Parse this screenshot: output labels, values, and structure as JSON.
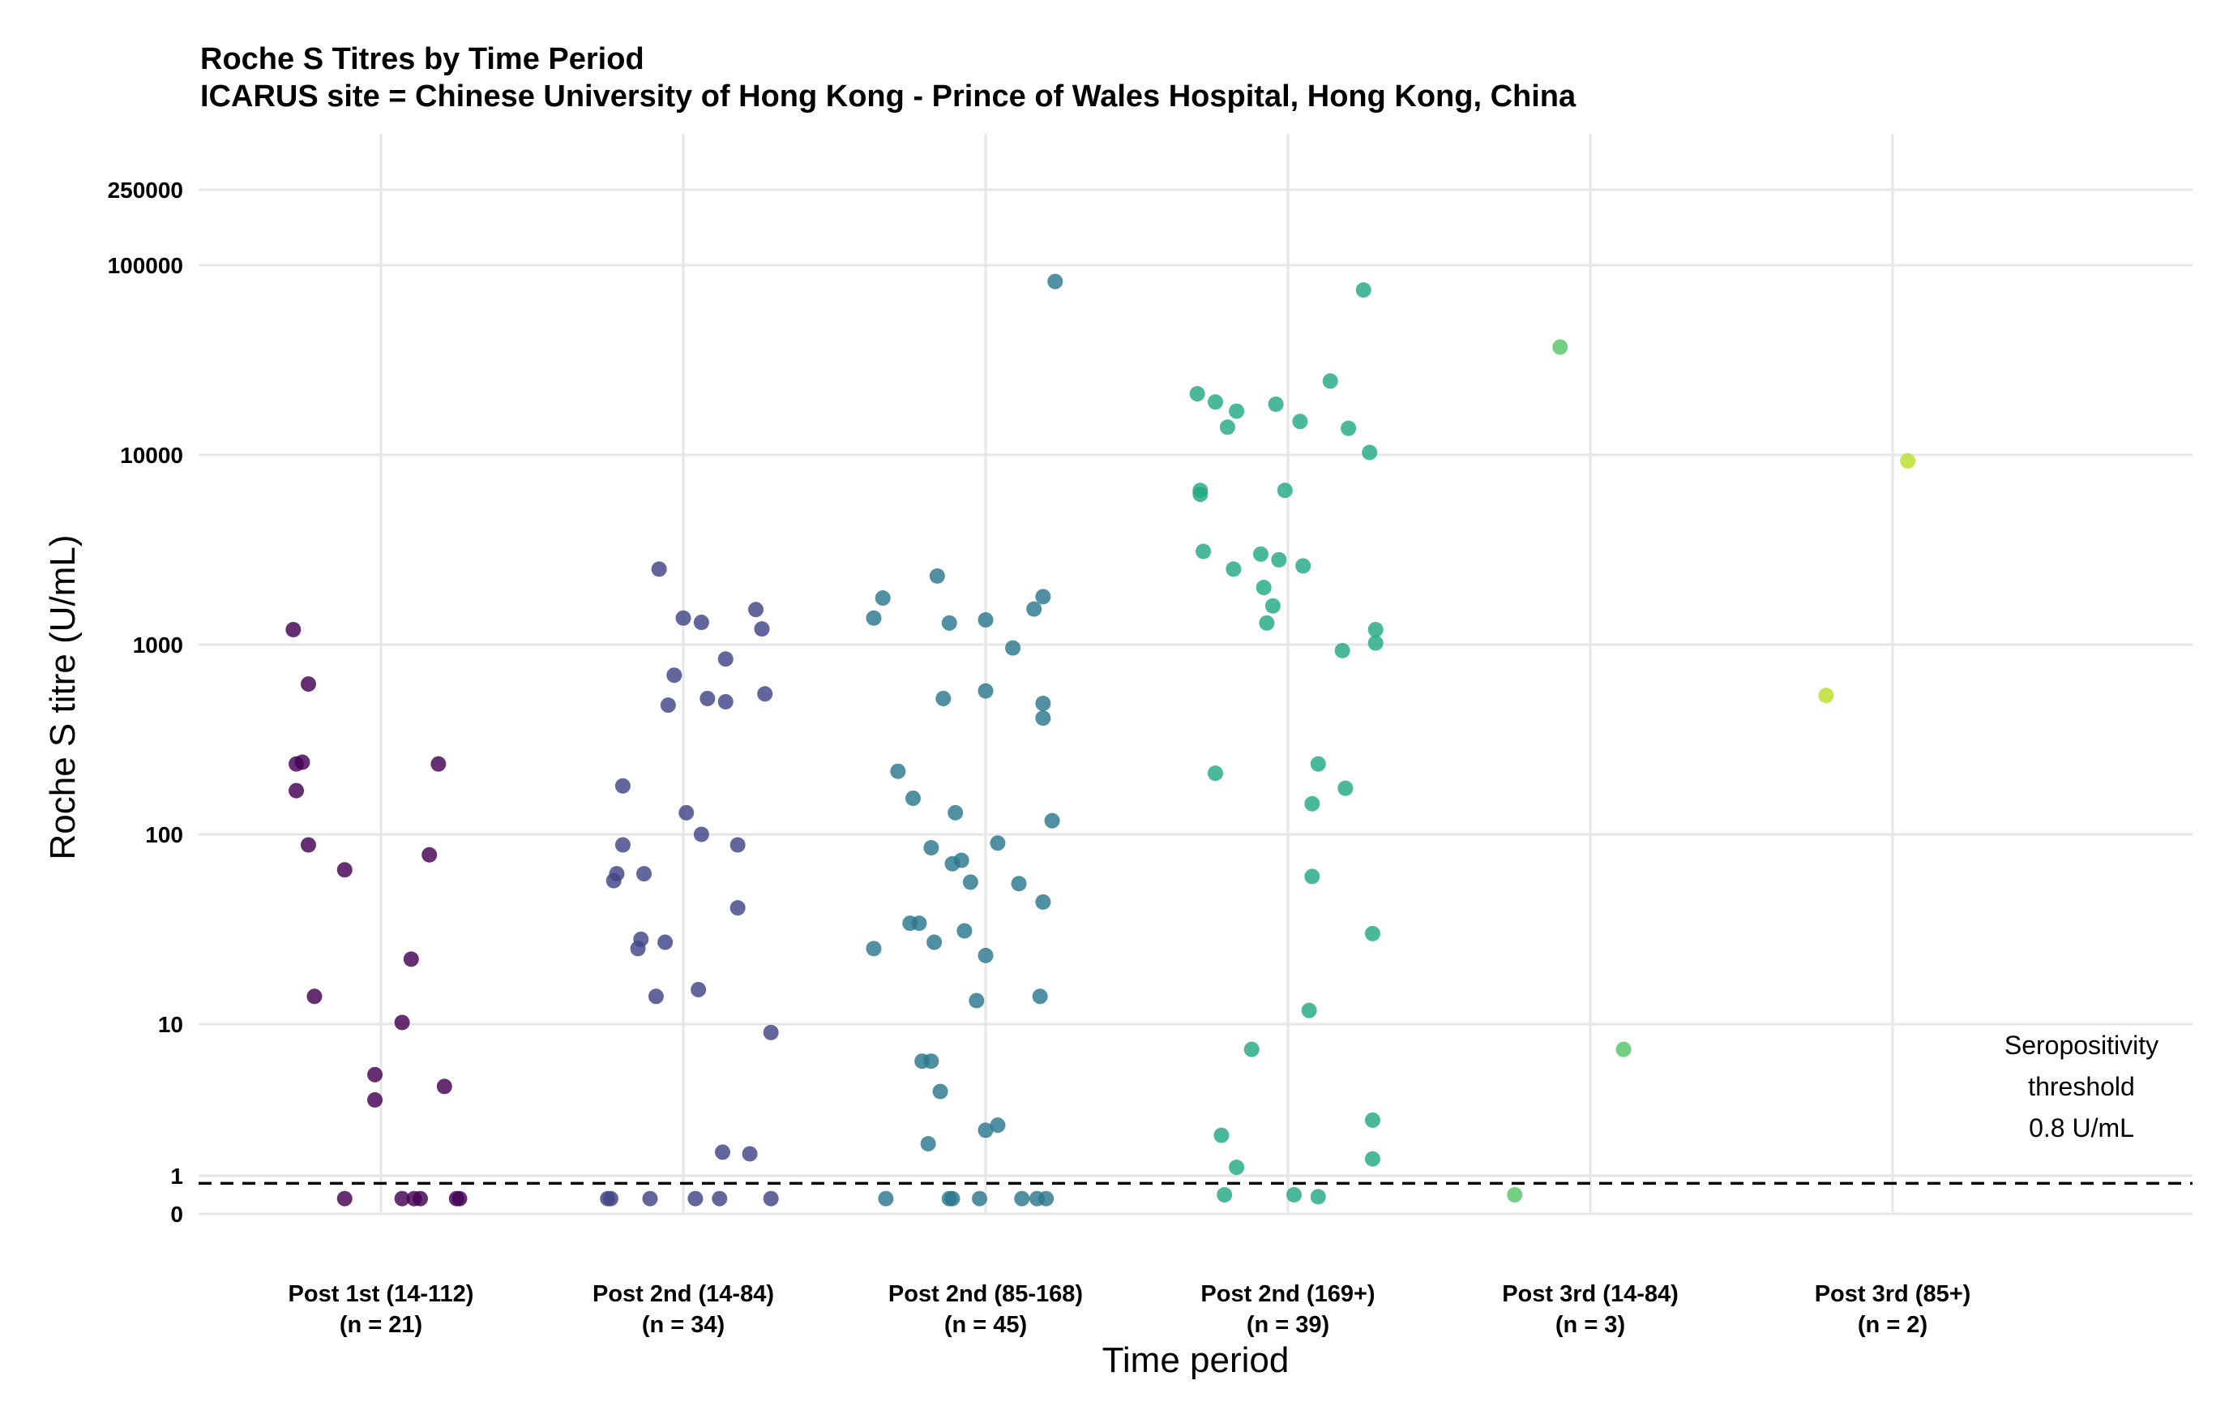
{
  "title": "Roche S Titres by Time Period",
  "subtitle": "ICARUS site = Chinese University of Hong Kong - Prince of Wales Hospital, Hong Kong, China",
  "chart_data": {
    "type": "scatter",
    "title": "Roche S Titres by Time Period",
    "subtitle": "ICARUS site = Chinese University of Hong Kong - Prince of Wales Hospital, Hong Kong, China",
    "xlabel": "Time period",
    "ylabel": "Roche S titre (U/mL)",
    "y_scale": "pseudo-log",
    "y_ticks": [
      "0",
      "1",
      "10",
      "100",
      "1000",
      "10000",
      "100000",
      "250000"
    ],
    "y_tick_values": [
      0,
      1,
      10,
      100,
      1000,
      10000,
      100000,
      250000
    ],
    "grid": true,
    "categories": [
      {
        "label": "Post 1st (14-112)",
        "n_label": "(n = 21)",
        "color": "#440154"
      },
      {
        "label": "Post 2nd (14-84)",
        "n_label": "(n = 34)",
        "color": "#414487"
      },
      {
        "label": "Post 2nd (85-168)",
        "n_label": "(n = 45)",
        "color": "#2A788E"
      },
      {
        "label": "Post 2nd (169+)",
        "n_label": "(n = 39)",
        "color": "#22A884"
      },
      {
        "label": "Post 3rd (14-84)",
        "n_label": "(n = 3)",
        "color": "#54C568"
      },
      {
        "label": "Post 3rd (85+)",
        "n_label": "(n = 2)",
        "color": "#BADE28"
      }
    ],
    "threshold": {
      "value": 0.8,
      "lines": [
        "Seropositivity",
        "threshold",
        "0.8 U/mL"
      ]
    },
    "series": [
      {
        "category": "Post 1st (14-112)",
        "points": [
          [
            -0.29,
            1200
          ],
          [
            -0.24,
            620
          ],
          [
            -0.28,
            235
          ],
          [
            -0.26,
            240
          ],
          [
            -0.28,
            170
          ],
          [
            -0.24,
            88
          ],
          [
            -0.12,
            65
          ],
          [
            -0.22,
            14
          ],
          [
            0.19,
            235
          ],
          [
            0.16,
            78
          ],
          [
            0.1,
            22
          ],
          [
            0.07,
            10.2
          ],
          [
            -0.02,
            7
          ],
          [
            -0.02,
            5.5
          ],
          [
            0.21,
            6.3
          ],
          [
            -0.12,
            0.4
          ],
          [
            0.07,
            0.4
          ],
          [
            0.11,
            0.4
          ],
          [
            0.13,
            0.4
          ],
          [
            0.25,
            0.4
          ],
          [
            0.26,
            0.4
          ]
        ]
      },
      {
        "category": "Post 2nd (14-84)",
        "points": [
          [
            -0.08,
            2500
          ],
          [
            0.0,
            1380
          ],
          [
            0.06,
            1310
          ],
          [
            0.24,
            1530
          ],
          [
            0.26,
            1210
          ],
          [
            -0.03,
            690
          ],
          [
            0.14,
            840
          ],
          [
            -0.05,
            480
          ],
          [
            0.08,
            520
          ],
          [
            0.14,
            500
          ],
          [
            0.27,
            550
          ],
          [
            -0.2,
            180
          ],
          [
            0.01,
            130
          ],
          [
            0.06,
            100
          ],
          [
            0.18,
            88
          ],
          [
            -0.2,
            88
          ],
          [
            -0.22,
            62
          ],
          [
            -0.13,
            62
          ],
          [
            -0.23,
            57
          ],
          [
            0.18,
            41
          ],
          [
            -0.14,
            28
          ],
          [
            -0.15,
            25
          ],
          [
            -0.06,
            27
          ],
          [
            0.05,
            15.2
          ],
          [
            -0.09,
            14
          ],
          [
            0.29,
            9.5
          ],
          [
            0.13,
            2.4
          ],
          [
            0.22,
            2.3
          ],
          [
            -0.25,
            0.4
          ],
          [
            -0.24,
            0.4
          ],
          [
            -0.11,
            0.4
          ],
          [
            0.04,
            0.4
          ],
          [
            0.12,
            0.4
          ],
          [
            0.29,
            0.4
          ]
        ]
      },
      {
        "category": "Post 2nd (85-168)",
        "points": [
          [
            0.23,
            82000
          ],
          [
            -0.16,
            2300
          ],
          [
            -0.34,
            1760
          ],
          [
            -0.37,
            1380
          ],
          [
            -0.12,
            1300
          ],
          [
            0.0,
            1350
          ],
          [
            0.16,
            1540
          ],
          [
            0.19,
            1790
          ],
          [
            0.09,
            960
          ],
          [
            0.19,
            490
          ],
          [
            0.19,
            410
          ],
          [
            -0.14,
            520
          ],
          [
            0.0,
            570
          ],
          [
            -0.29,
            215
          ],
          [
            -0.24,
            155
          ],
          [
            -0.1,
            130
          ],
          [
            0.22,
            118
          ],
          [
            0.04,
            90
          ],
          [
            -0.18,
            85
          ],
          [
            -0.08,
            73
          ],
          [
            -0.11,
            70
          ],
          [
            -0.05,
            56
          ],
          [
            0.11,
            55
          ],
          [
            0.19,
            44
          ],
          [
            -0.25,
            34
          ],
          [
            -0.22,
            34
          ],
          [
            -0.37,
            25
          ],
          [
            -0.17,
            27
          ],
          [
            -0.07,
            31
          ],
          [
            0.0,
            23
          ],
          [
            -0.03,
            13.3
          ],
          [
            0.18,
            14
          ],
          [
            -0.21,
            7.8
          ],
          [
            -0.18,
            7.8
          ],
          [
            -0.15,
            6
          ],
          [
            -0.19,
            2.9
          ],
          [
            0.0,
            3.7
          ],
          [
            0.04,
            4
          ],
          [
            -0.33,
            0.4
          ],
          [
            -0.12,
            0.4
          ],
          [
            -0.11,
            0.4
          ],
          [
            -0.02,
            0.4
          ],
          [
            0.12,
            0.4
          ],
          [
            0.17,
            0.4
          ],
          [
            0.2,
            0.4
          ]
        ]
      },
      {
        "category": "Post 2nd (169+)",
        "points": [
          [
            0.25,
            74000
          ],
          [
            0.14,
            24500
          ],
          [
            -0.3,
            21000
          ],
          [
            -0.24,
            19000
          ],
          [
            -0.17,
            17000
          ],
          [
            -0.04,
            18500
          ],
          [
            0.04,
            15000
          ],
          [
            -0.2,
            14000
          ],
          [
            0.2,
            13800
          ],
          [
            0.27,
            10300
          ],
          [
            -0.29,
            6500
          ],
          [
            -0.29,
            6200
          ],
          [
            -0.01,
            6500
          ],
          [
            -0.28,
            3100
          ],
          [
            -0.09,
            3000
          ],
          [
            -0.03,
            2800
          ],
          [
            0.05,
            2600
          ],
          [
            -0.18,
            2500
          ],
          [
            -0.08,
            2000
          ],
          [
            -0.05,
            1600
          ],
          [
            -0.07,
            1300
          ],
          [
            0.29,
            1200
          ],
          [
            0.29,
            1020
          ],
          [
            0.18,
            930
          ],
          [
            -0.24,
            210
          ],
          [
            0.1,
            235
          ],
          [
            0.19,
            175
          ],
          [
            0.08,
            145
          ],
          [
            0.08,
            60
          ],
          [
            0.28,
            30
          ],
          [
            -0.12,
            8.5
          ],
          [
            0.07,
            11.8
          ],
          [
            -0.22,
            3.4
          ],
          [
            0.28,
            4.3
          ],
          [
            -0.17,
            1.5
          ],
          [
            0.28,
            2
          ],
          [
            -0.21,
            0.5
          ],
          [
            0.02,
            0.5
          ],
          [
            0.1,
            0.45
          ]
        ]
      },
      {
        "category": "Post 3rd (14-84)",
        "points": [
          [
            -0.1,
            37000
          ],
          [
            0.11,
            8.5
          ],
          [
            -0.25,
            0.5
          ]
        ]
      },
      {
        "category": "Post 3rd (85+)",
        "points": [
          [
            -0.22,
            540
          ],
          [
            0.05,
            9300
          ]
        ]
      }
    ]
  }
}
